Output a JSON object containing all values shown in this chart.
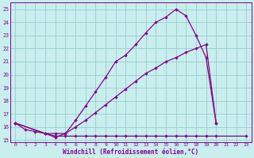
{
  "background_color": "#c8eeee",
  "grid_color": "#99cccc",
  "line_color": "#880088",
  "xlabel": "Windchill (Refroidissement éolien,°C)",
  "xlim": [
    -0.5,
    23.5
  ],
  "ylim": [
    14.85,
    25.5
  ],
  "yticks": [
    15,
    16,
    17,
    18,
    19,
    20,
    21,
    22,
    23,
    24,
    25
  ],
  "xticks": [
    0,
    1,
    2,
    3,
    4,
    5,
    6,
    7,
    8,
    9,
    10,
    11,
    12,
    13,
    14,
    15,
    16,
    17,
    18,
    19,
    20,
    21,
    22,
    23
  ],
  "line1_x": [
    0,
    1,
    2,
    3,
    4,
    5,
    6,
    7,
    8,
    9,
    10,
    11,
    12,
    13,
    14,
    15,
    16,
    17,
    18,
    19,
    20
  ],
  "line1_y": [
    16.3,
    15.8,
    15.65,
    15.5,
    15.2,
    15.5,
    16.5,
    17.6,
    18.7,
    19.8,
    21.0,
    21.5,
    22.3,
    23.2,
    24.0,
    24.4,
    25.0,
    24.5,
    23.0,
    21.3,
    16.3
  ],
  "line2_x": [
    0,
    3,
    4,
    5,
    6,
    7,
    8,
    9,
    10,
    11,
    12,
    13,
    14,
    15,
    16,
    17,
    18,
    19,
    20
  ],
  "line2_y": [
    16.3,
    15.5,
    15.5,
    15.5,
    16.0,
    16.5,
    17.1,
    17.7,
    18.3,
    18.9,
    19.5,
    20.1,
    20.5,
    21.0,
    21.3,
    21.7,
    22.0,
    22.3,
    16.3
  ],
  "line3_x": [
    0,
    3,
    4,
    5,
    6,
    7,
    8,
    9,
    10,
    11,
    12,
    13,
    14,
    15,
    16,
    17,
    18,
    19,
    20,
    23
  ],
  "line3_y": [
    16.3,
    15.5,
    15.3,
    15.3,
    15.3,
    15.3,
    15.3,
    15.3,
    15.3,
    15.3,
    15.3,
    15.3,
    15.3,
    15.3,
    15.3,
    15.3,
    15.3,
    15.3,
    15.3,
    15.3
  ]
}
